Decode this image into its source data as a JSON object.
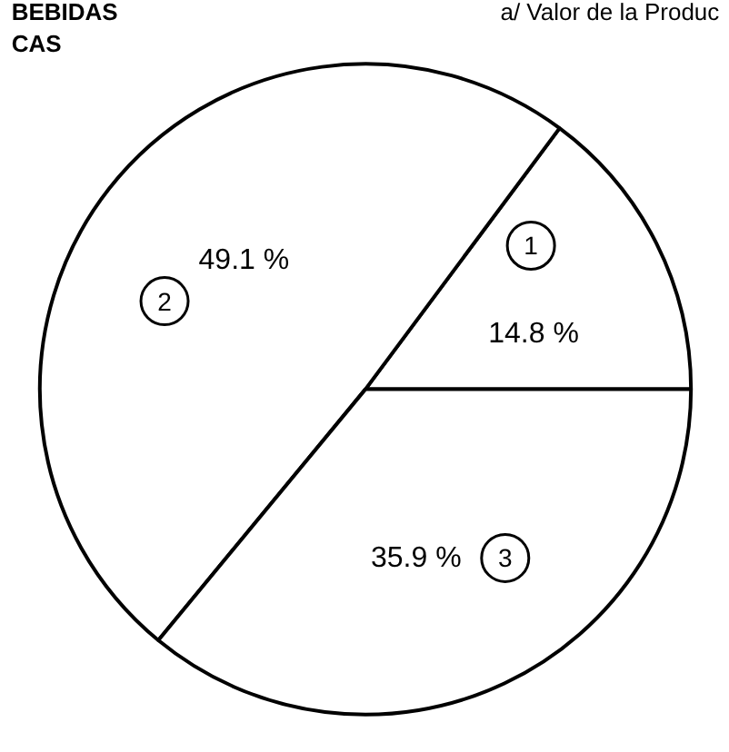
{
  "chart_data": {
    "type": "pie",
    "categories": [
      "1",
      "2",
      "3"
    ],
    "values": [
      14.8,
      49.1,
      35.9
    ],
    "colors": [
      "#ffffff",
      "#ffffff",
      "#ffffff"
    ],
    "value_labels": [
      "14.8 %",
      "49.1 %",
      "35.9 %"
    ],
    "annotations": [
      "BEBIDAS",
      "CAS",
      "a/ Valor de la Produc"
    ]
  }
}
